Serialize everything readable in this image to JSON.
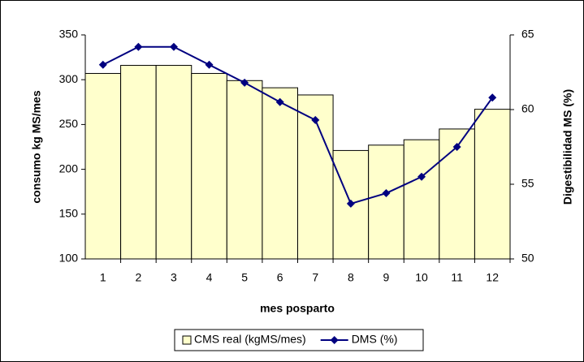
{
  "chart_data": {
    "type": "bar",
    "x_label": "mes posparto",
    "y_label": "consumo kg MS/mes",
    "y2_label": "Digestibilidad MS (%)",
    "categories": [
      "1",
      "2",
      "3",
      "4",
      "5",
      "6",
      "7",
      "8",
      "9",
      "10",
      "11",
      "12"
    ],
    "series": [
      {
        "name": "CMS real (kgMS/mes)",
        "type": "bar",
        "color": "#ffffcc",
        "values": [
          307,
          316,
          316,
          307,
          299,
          291,
          283,
          221,
          227,
          233,
          245,
          267
        ]
      },
      {
        "name": "DMS (%)",
        "type": "line",
        "axis": "y2",
        "color": "#000080",
        "values": [
          63.0,
          64.2,
          64.2,
          63.0,
          61.8,
          60.5,
          59.3,
          53.7,
          54.4,
          55.5,
          57.5,
          60.8
        ]
      }
    ],
    "ylim": [
      100,
      350
    ],
    "yticks": [
      100,
      150,
      200,
      250,
      300,
      350
    ],
    "y2lim": [
      50,
      65
    ],
    "y2ticks": [
      50,
      55,
      60,
      65
    ],
    "legend": "bottom"
  }
}
